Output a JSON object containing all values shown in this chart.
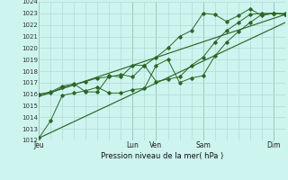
{
  "background_color": "#cdf4ee",
  "grid_color_major": "#b0ddd4",
  "grid_color_minor": "#cce8e2",
  "line_color": "#2d6628",
  "xlabel": "Pression niveau de la mer( hPa )",
  "ylim": [
    1012,
    1024
  ],
  "yticks": [
    1012,
    1013,
    1014,
    1015,
    1016,
    1017,
    1018,
    1019,
    1020,
    1021,
    1022,
    1023,
    1024
  ],
  "day_labels": [
    "Jeu",
    "Lun",
    "Ven",
    "Sam",
    "Dim"
  ],
  "day_positions": [
    0,
    4,
    5,
    7,
    10
  ],
  "xlim": [
    0,
    10.5
  ],
  "series1_x": [
    0.0,
    0.5,
    1.0,
    1.5,
    2.0,
    2.5,
    3.0,
    3.5,
    4.0,
    4.5,
    5.0,
    5.5,
    6.0,
    6.5,
    7.0,
    7.5,
    8.0,
    8.5,
    9.0,
    9.5,
    10.0,
    10.5
  ],
  "series1_y": [
    1016.0,
    1016.1,
    1016.6,
    1016.8,
    1017.1,
    1017.4,
    1017.5,
    1017.7,
    1017.5,
    1018.5,
    1019.2,
    1020.0,
    1021.0,
    1021.5,
    1023.0,
    1022.9,
    1022.3,
    1022.8,
    1023.4,
    1022.8,
    1023.0,
    1022.9
  ],
  "series2_x": [
    0.0,
    0.5,
    1.0,
    1.5,
    2.0,
    2.5,
    3.0,
    3.5,
    4.0,
    4.5,
    5.0,
    5.5,
    6.0,
    6.5,
    7.0,
    7.5,
    8.0,
    8.5,
    9.0,
    9.5,
    10.0,
    10.5
  ],
  "series2_y": [
    1016.0,
    1016.2,
    1016.7,
    1016.9,
    1016.2,
    1016.2,
    1017.6,
    1017.5,
    1018.5,
    1018.5,
    1017.1,
    1017.3,
    1017.5,
    1018.5,
    1019.2,
    1020.5,
    1021.5,
    1022.2,
    1022.9,
    1023.0,
    1023.0,
    1023.0
  ],
  "trend1_x": [
    0,
    10.5
  ],
  "trend1_y": [
    1012.2,
    1022.2
  ],
  "trend2_x": [
    0,
    10.5
  ],
  "trend2_y": [
    1015.8,
    1022.9
  ],
  "lower_line_x": [
    0,
    0.5,
    1.0,
    1.5,
    2.0,
    2.5,
    3.0,
    3.5,
    4.0,
    4.5,
    5.0,
    5.5,
    6.0,
    6.5,
    7.0,
    7.5,
    8.0,
    8.5,
    9.0,
    9.5,
    10.0,
    10.5
  ],
  "lower_line_y": [
    1012.2,
    1013.7,
    1015.9,
    1016.1,
    1016.3,
    1016.6,
    1016.1,
    1016.1,
    1016.4,
    1016.5,
    1018.5,
    1019.0,
    1017.0,
    1017.4,
    1017.6,
    1019.3,
    1020.5,
    1021.4,
    1022.2,
    1022.9,
    1023.0,
    1022.9
  ]
}
